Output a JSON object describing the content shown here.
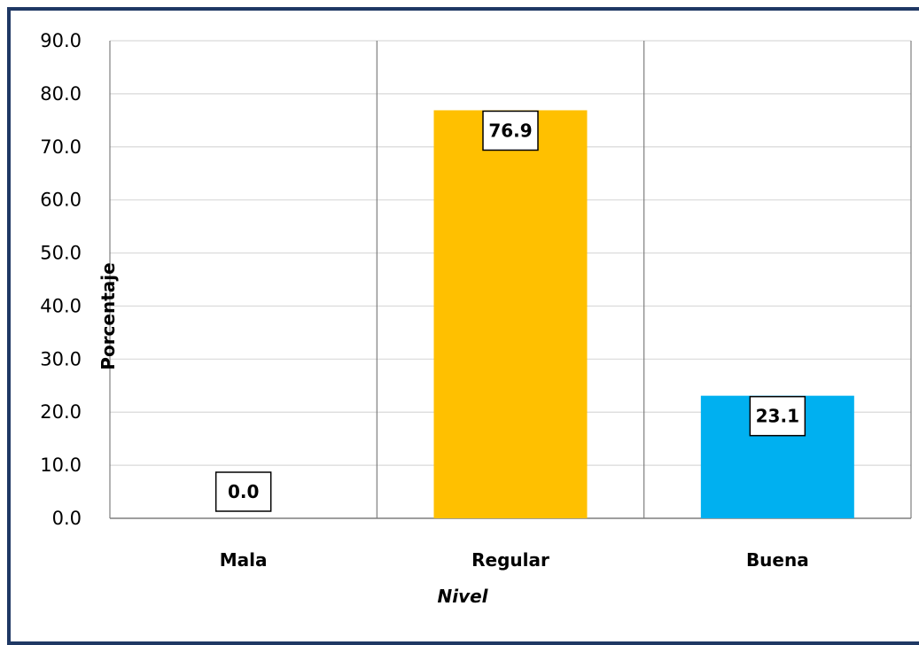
{
  "chart_data": {
    "type": "bar",
    "categories": [
      "Mala",
      "Regular",
      "Buena"
    ],
    "values": [
      0.0,
      76.9,
      23.1
    ],
    "value_labels": [
      "0.0",
      "76.9",
      "23.1"
    ],
    "colors": [
      "#ffc000",
      "#ffc000",
      "#00b0f0"
    ],
    "title": "",
    "xlabel": "Nivel",
    "ylabel": "Porcentaje",
    "ylim": [
      0,
      90
    ],
    "yticks": [
      "0.0",
      "10.0",
      "20.0",
      "30.0",
      "40.0",
      "50.0",
      "60.0",
      "70.0",
      "80.0",
      "90.0"
    ],
    "grid": true,
    "legend": "none"
  }
}
